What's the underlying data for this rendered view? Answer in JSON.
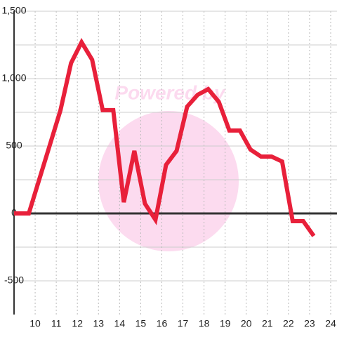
{
  "chart_data": {
    "type": "line",
    "watermark": "Powered by",
    "x": [
      9,
      9.7,
      10.2,
      10.7,
      11.2,
      11.7,
      12.2,
      12.7,
      13.2,
      13.7,
      14.2,
      14.7,
      15.2,
      15.7,
      16.2,
      16.7,
      17.2,
      17.7,
      18.2,
      18.7,
      19.2,
      19.7,
      20.2,
      20.7,
      21.2,
      21.7,
      22.2,
      22.7,
      23.2
    ],
    "series": [
      {
        "color": "#e8203a",
        "values": [
          0,
          0,
          255,
          510,
          766,
          1115,
          1270,
          1140,
          766,
          766,
          83,
          464,
          73,
          -47,
          360,
          464,
          792,
          880,
          922,
          828,
          615,
          615,
          474,
          422,
          422,
          385,
          -57,
          -57,
          -167
        ]
      }
    ],
    "xlim": [
      9,
      24.3
    ],
    "xticks": [
      10,
      11,
      12,
      13,
      14,
      15,
      16,
      17,
      18,
      19,
      20,
      21,
      22,
      23,
      24
    ],
    "ylim": [
      -750,
      1500
    ],
    "yticks": [
      {
        "value": 1500,
        "label": "1,500"
      },
      {
        "value": 1000,
        "label": "1,000"
      },
      500,
      0,
      -500
    ],
    "yminor": [
      1250,
      750,
      250,
      -250
    ],
    "grid": true
  }
}
